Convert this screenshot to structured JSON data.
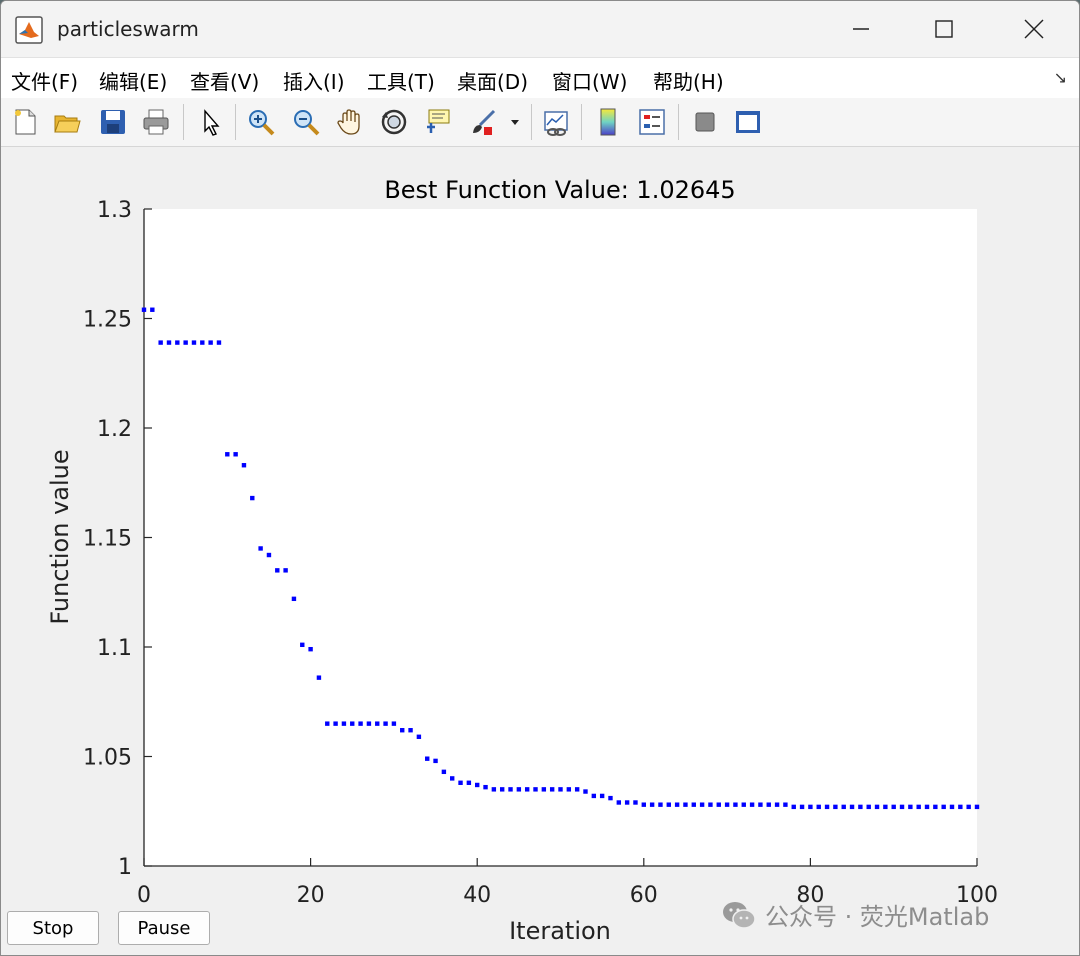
{
  "window": {
    "title": "particleswarm"
  },
  "menu": [
    "文件(F)",
    "编辑(E)",
    "查看(V)",
    "插入(I)",
    "工具(T)",
    "桌面(D)",
    "窗口(W)",
    "帮助(H)"
  ],
  "toolbar": [
    "new-file-icon",
    "open-folder-icon",
    "save-icon",
    "print-icon",
    "pointer-icon",
    "zoom-in-icon",
    "zoom-out-icon",
    "pan-hand-icon",
    "rotate-3d-icon",
    "data-cursor-icon",
    "brush-icon",
    "link-plot-icon",
    "colorbar-icon",
    "legend-icon",
    "hide-plot-tools-icon",
    "show-plot-tools-icon"
  ],
  "buttons": {
    "stop": "Stop",
    "pause": "Pause"
  },
  "watermark": "公众号 · 荧光Matlab",
  "colors": {
    "marker": "#0000ff",
    "axes_bg": "#ffffff",
    "figure_bg": "#f0f0f0"
  },
  "chart_data": {
    "type": "scatter",
    "title": "Best Function Value: 1.02645",
    "xlabel": "Iteration",
    "ylabel": "Function value",
    "xlim": [
      0,
      100
    ],
    "ylim": [
      1,
      1.3
    ],
    "xticks": [
      "0",
      "20",
      "40",
      "60",
      "80",
      "100"
    ],
    "yticks": [
      "1",
      "1.05",
      "1.1",
      "1.15",
      "1.2",
      "1.25",
      "1.3"
    ],
    "grid": false,
    "series": [
      {
        "values": [
          1.254,
          1.254,
          1.239,
          1.239,
          1.239,
          1.239,
          1.239,
          1.239,
          1.239,
          1.239,
          1.188,
          1.188,
          1.183,
          1.168,
          1.145,
          1.142,
          1.135,
          1.135,
          1.122,
          1.101,
          1.099,
          1.086,
          1.065,
          1.065,
          1.065,
          1.065,
          1.065,
          1.065,
          1.065,
          1.065,
          1.065,
          1.062,
          1.062,
          1.059,
          1.049,
          1.048,
          1.043,
          1.04,
          1.038,
          1.038,
          1.037,
          1.036,
          1.035,
          1.035,
          1.035,
          1.035,
          1.035,
          1.035,
          1.035,
          1.035,
          1.035,
          1.035,
          1.035,
          1.034,
          1.032,
          1.032,
          1.031,
          1.029,
          1.029,
          1.029,
          1.028,
          1.028,
          1.028,
          1.028,
          1.028,
          1.028,
          1.028,
          1.028,
          1.028,
          1.028,
          1.028,
          1.028,
          1.028,
          1.028,
          1.028,
          1.028,
          1.028,
          1.028,
          1.027,
          1.027,
          1.027,
          1.027,
          1.027,
          1.027,
          1.027,
          1.027,
          1.027,
          1.027,
          1.027,
          1.027,
          1.027,
          1.027,
          1.027,
          1.027,
          1.027,
          1.027,
          1.027,
          1.027,
          1.027,
          1.027,
          1.027
        ]
      }
    ]
  }
}
